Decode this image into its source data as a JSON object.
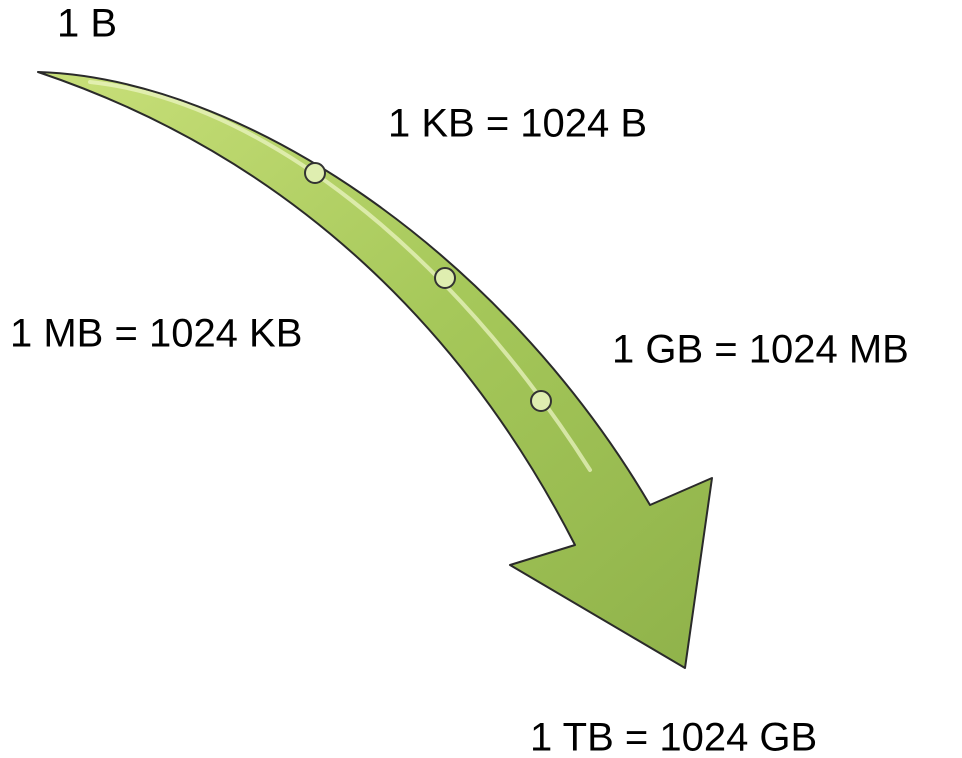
{
  "labels": {
    "byte": "1 B",
    "kilobyte": "1 KB = 1024 B",
    "megabyte": "1 MB = 1024 KB",
    "gigabyte": "1 GB = 1024 MB",
    "terabyte": "1 TB = 1024 GB"
  }
}
